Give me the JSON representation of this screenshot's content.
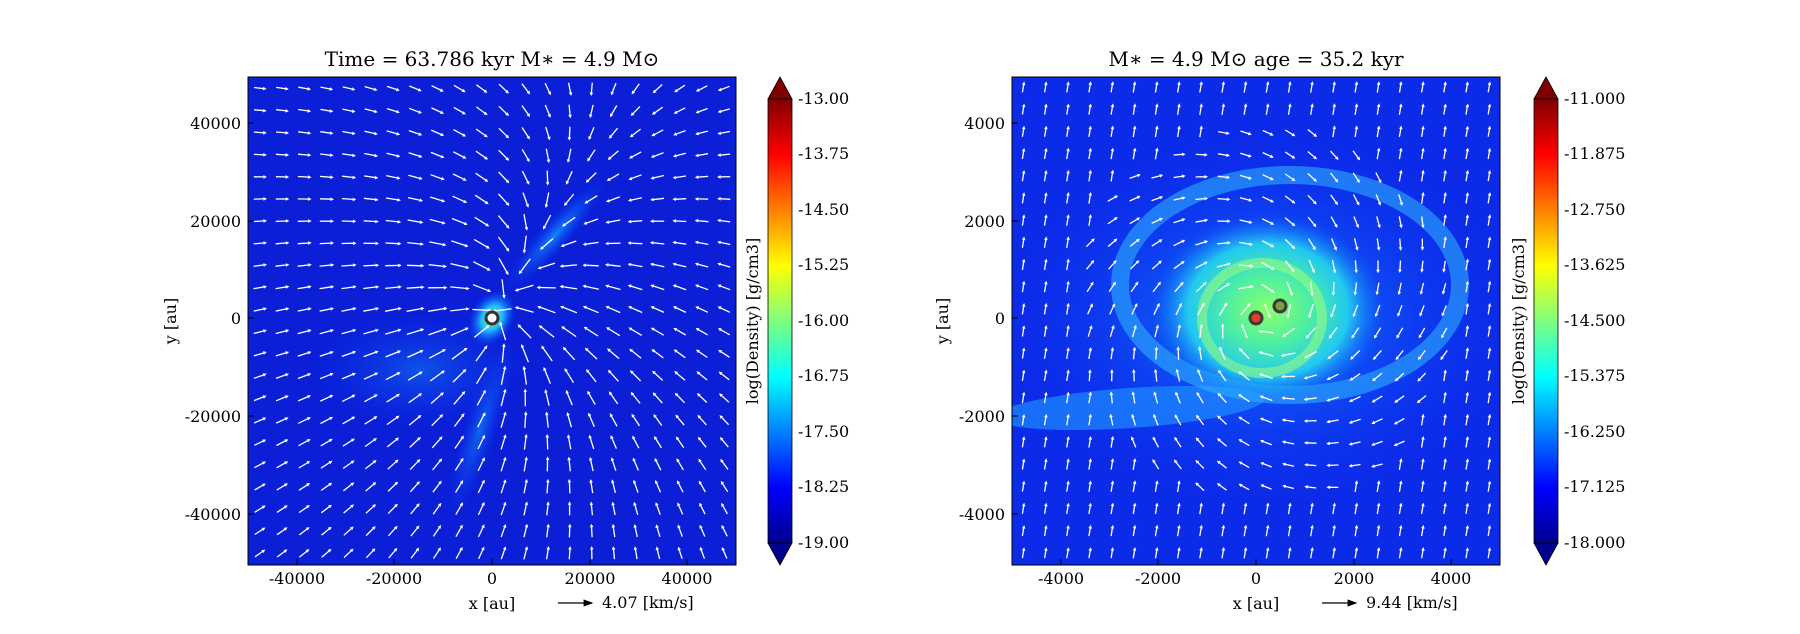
{
  "panels": [
    {
      "title": "Time = 63.786 kyr    M∗ = 4.9 M⊙",
      "xlabel": "x [au]",
      "ylabel": "y [au]",
      "velocity_key": "4.07 [km/s]",
      "colorbar_label": "log(Density) [g/cm3]",
      "xticks": [
        "-40000",
        "-20000",
        "0",
        "20000",
        "40000"
      ],
      "yticks": [
        "40000",
        "20000",
        "0",
        "-20000",
        "-40000"
      ],
      "cbar_ticks": [
        "-13.00",
        "-13.75",
        "-14.50",
        "-15.25",
        "-16.00",
        "-16.75",
        "-17.50",
        "-18.25",
        "-19.00"
      ]
    },
    {
      "title": "M∗ = 4.9 M⊙          age = 35.2 kyr",
      "xlabel": "x [au]",
      "ylabel": "y [au]",
      "velocity_key": "9.44 [km/s]",
      "colorbar_label": "log(Density) [g/cm3]",
      "xticks": [
        "-4000",
        "-2000",
        "0",
        "2000",
        "4000"
      ],
      "yticks": [
        "4000",
        "2000",
        "0",
        "-2000",
        "-4000"
      ],
      "cbar_ticks": [
        "-11.000",
        "-11.875",
        "-12.750",
        "-13.625",
        "-14.500",
        "-15.375",
        "-16.250",
        "-17.125",
        "-18.000"
      ]
    }
  ],
  "chart_data": [
    {
      "type": "heatmap",
      "title": "Time = 63.786 kyr    M∗ = 4.9 M⊙",
      "xlabel": "x [au]",
      "ylabel": "y [au]",
      "xlim": [
        -50000,
        50000
      ],
      "ylim": [
        -50000,
        50000
      ],
      "x_ticks": [
        -40000,
        -20000,
        0,
        20000,
        40000
      ],
      "y_ticks": [
        -40000,
        -20000,
        0,
        20000,
        40000
      ],
      "colorbar": {
        "label": "log(Density) [g/cm3]",
        "range": [
          -19.0,
          -13.0
        ],
        "ticks": [
          -13.0,
          -13.75,
          -14.5,
          -15.25,
          -16.0,
          -16.75,
          -17.5,
          -18.25,
          -19.0
        ],
        "colormap": "jet"
      },
      "overlay": "velocity vector field (white arrows)",
      "velocity_reference": "4.07 [km/s]",
      "sinks": [
        {
          "x": 0,
          "y": 0
        }
      ]
    },
    {
      "type": "heatmap",
      "title": "M∗ = 4.9 M⊙          age = 35.2 kyr",
      "xlabel": "x [au]",
      "ylabel": "y [au]",
      "xlim": [
        -5000,
        5000
      ],
      "ylim": [
        -5000,
        5000
      ],
      "x_ticks": [
        -4000,
        -2000,
        0,
        2000,
        4000
      ],
      "y_ticks": [
        -4000,
        -2000,
        0,
        2000,
        4000
      ],
      "colorbar": {
        "label": "log(Density) [g/cm3]",
        "range": [
          -18.0,
          -11.0
        ],
        "ticks": [
          -11.0,
          -11.875,
          -12.75,
          -13.625,
          -14.5,
          -15.375,
          -16.25,
          -17.125,
          -18.0
        ],
        "colormap": "jet"
      },
      "overlay": "velocity vector field (white arrows)",
      "velocity_reference": "9.44 [km/s]",
      "sinks": [
        {
          "x": 0,
          "y": 0
        },
        {
          "x": 500,
          "y": 250
        }
      ]
    }
  ]
}
